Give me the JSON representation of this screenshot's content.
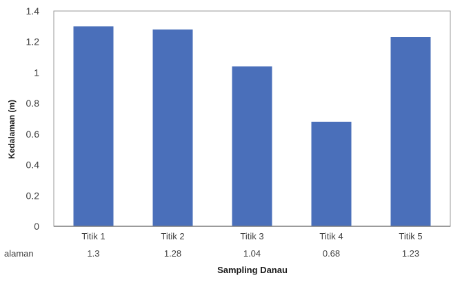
{
  "chart_data": {
    "type": "bar",
    "categories": [
      "Titik 1",
      "Titik 2",
      "Titik 3",
      "Titik 4",
      "Titik 5"
    ],
    "series": [
      {
        "name": "Kedalaman",
        "values": [
          1.3,
          1.28,
          1.04,
          0.68,
          1.23
        ],
        "color": "#4a6fba"
      }
    ],
    "table_row_label": "alaman",
    "table_values": [
      "1.3",
      "1.28",
      "1.04",
      "0.68",
      "1.23"
    ],
    "xlabel": "Sampling Danau",
    "ylabel": "Kedalaman (m)",
    "ylim": [
      0,
      1.4
    ],
    "yticks": [
      "0",
      "0.2",
      "0.4",
      "0.6",
      "0.8",
      "1",
      "1.2",
      "1.4"
    ],
    "ytick_values": [
      0,
      0.2,
      0.4,
      0.6,
      0.8,
      1.0,
      1.2,
      1.4
    ],
    "grid": false,
    "legend": "none"
  }
}
